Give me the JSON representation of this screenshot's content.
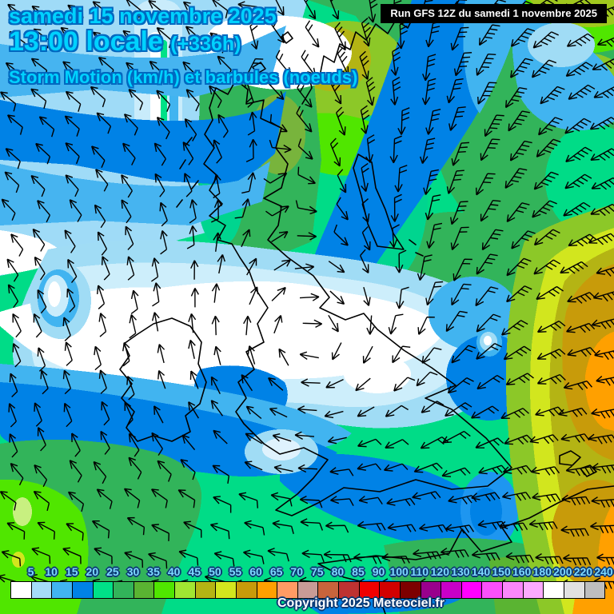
{
  "header": {
    "date_line": "samedi 15 novembre 2025",
    "time_line": "13:00 locale",
    "time_suffix": "(+336h)",
    "subtitle": "Storm Motion (km/h) et barbules (noeuds)",
    "text_color": "#00d2ff",
    "outline_color": "#0068c0"
  },
  "run_info": {
    "text": "Run GFS 12Z du samedi 1 novembre 2025",
    "background": "#000000",
    "color": "#ffffff"
  },
  "legend": {
    "values": [
      5,
      10,
      15,
      20,
      25,
      30,
      35,
      40,
      45,
      50,
      55,
      60,
      65,
      70,
      75,
      80,
      85,
      90,
      100,
      110,
      120,
      130,
      140,
      150,
      160,
      180,
      200,
      220,
      240
    ],
    "colors": [
      "#ffffff",
      "#a5dcf7",
      "#41b4f0",
      "#0082e6",
      "#00e187",
      "#32b45a",
      "#5ab432",
      "#50e600",
      "#a0e632",
      "#b4b414",
      "#d2e61e",
      "#c89b0a",
      "#ffa000",
      "#ff9b64",
      "#c89b96",
      "#c8643c",
      "#be3232",
      "#f00000",
      "#d20000",
      "#7d0000",
      "#99008c",
      "#c800c8",
      "#ff00ff",
      "#fa50fa",
      "#fa87fa",
      "#fcaaff",
      "#ffffff",
      "#e1e1e1",
      "#bebebe"
    ],
    "tick_color": "#7dd9ff"
  },
  "copyright": {
    "text": "Copyright 2025 Meteociel.fr"
  }
}
